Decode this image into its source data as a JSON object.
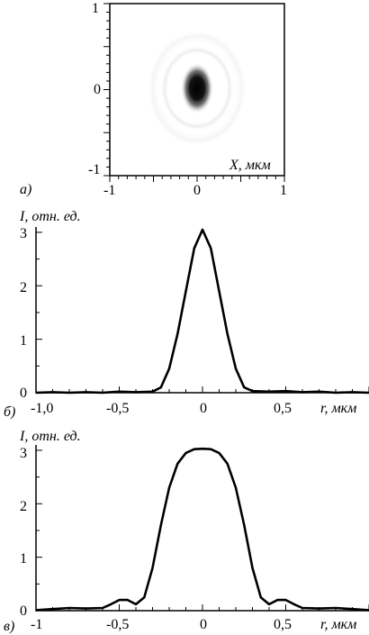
{
  "chart_data": [
    {
      "type": "heatmap",
      "panel_label": "а)",
      "xlabel": "X, мкм",
      "ylabel": "",
      "xlim": [
        -1,
        1
      ],
      "ylim": [
        -1,
        1
      ],
      "x_ticks": [
        "-1",
        "0",
        "1"
      ],
      "y_ticks": [
        "1",
        "0",
        "-1"
      ],
      "spot": {
        "center": [
          0,
          0
        ],
        "sigma_x": 0.06,
        "sigma_y": 0.1,
        "peak": 1.0,
        "ring_radii": [
          0.26,
          0.42
        ]
      }
    },
    {
      "type": "line",
      "panel_label": "б)",
      "ylabel": "I, отн. ед.",
      "xlabel": "r, мкм",
      "xlim": [
        -1.0,
        1.0
      ],
      "ylim": [
        0,
        3.1
      ],
      "x_ticks": [
        "-1,0",
        "-0,5",
        "0",
        "0,5"
      ],
      "y_ticks": [
        "3",
        "2",
        "1",
        "0"
      ],
      "grid": false,
      "x": [
        -1.0,
        -0.9,
        -0.8,
        -0.7,
        -0.6,
        -0.5,
        -0.4,
        -0.3,
        -0.25,
        -0.2,
        -0.15,
        -0.1,
        -0.05,
        0.0,
        0.05,
        0.1,
        0.15,
        0.2,
        0.25,
        0.3,
        0.4,
        0.5,
        0.6,
        0.7,
        0.8,
        0.9,
        1.0
      ],
      "y": [
        0.0,
        0.01,
        0.0,
        0.01,
        0.0,
        0.02,
        0.01,
        0.02,
        0.1,
        0.45,
        1.1,
        1.9,
        2.7,
        3.05,
        2.7,
        1.9,
        1.1,
        0.45,
        0.1,
        0.03,
        0.02,
        0.03,
        0.01,
        0.02,
        0.0,
        0.01,
        0.0
      ]
    },
    {
      "type": "line",
      "panel_label": "в)",
      "ylabel": "I, отн. ед.",
      "xlabel": "r, мкм",
      "xlim": [
        -1,
        1
      ],
      "ylim": [
        0,
        3.1
      ],
      "x_ticks": [
        "-1",
        "-0,5",
        "0",
        "0,5"
      ],
      "y_ticks": [
        "3",
        "2",
        "1",
        "0"
      ],
      "grid": false,
      "x": [
        -1.0,
        -0.9,
        -0.8,
        -0.7,
        -0.6,
        -0.55,
        -0.5,
        -0.45,
        -0.4,
        -0.35,
        -0.3,
        -0.25,
        -0.2,
        -0.15,
        -0.1,
        -0.05,
        0.0,
        0.05,
        0.1,
        0.15,
        0.2,
        0.25,
        0.3,
        0.35,
        0.4,
        0.45,
        0.5,
        0.55,
        0.6,
        0.7,
        0.8,
        0.9,
        1.0
      ],
      "y": [
        0.01,
        0.03,
        0.05,
        0.04,
        0.05,
        0.12,
        0.2,
        0.2,
        0.12,
        0.25,
        0.8,
        1.6,
        2.3,
        2.75,
        2.95,
        3.02,
        3.03,
        3.02,
        2.95,
        2.75,
        2.3,
        1.6,
        0.8,
        0.25,
        0.12,
        0.2,
        0.2,
        0.12,
        0.05,
        0.04,
        0.05,
        0.03,
        0.01
      ]
    }
  ]
}
